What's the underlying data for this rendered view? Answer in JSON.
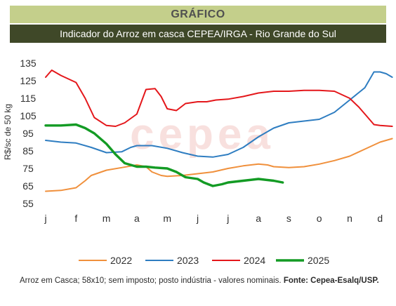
{
  "header": {
    "title": "GRÁFICO",
    "subtitle": "Indicador do Arroz em casca CEPEA/IRGA - Rio Grande do Sul"
  },
  "caption": {
    "text": "Arroz em Casca; 58x10; sem imposto; posto indústria - valores nominais.",
    "source": "Fonte: Cepea-Esalq/USP."
  },
  "watermark": "cepea",
  "chart_data": {
    "type": "line",
    "ylabel": "R$/sc de 50 kg",
    "xlabel": "",
    "ylim": [
      55,
      135
    ],
    "yticks": [
      55,
      65,
      75,
      85,
      95,
      105,
      115,
      125,
      135
    ],
    "xticks": [
      "j",
      "f",
      "m",
      "a",
      "m",
      "j",
      "j",
      "a",
      "s",
      "o",
      "n",
      "d"
    ],
    "legend_position": "bottom",
    "series": [
      {
        "name": "2022",
        "color": "#f0903c",
        "width": 2,
        "x": [
          0,
          0.5,
          1,
          1.3,
          1.5,
          2,
          2.5,
          3,
          3.3,
          3.5,
          3.8,
          4,
          4.5,
          5,
          5.5,
          6,
          6.5,
          7,
          7.3,
          7.5,
          8,
          8.5,
          9,
          9.5,
          10,
          10.5,
          11,
          11.4
        ],
        "values": [
          62,
          62.5,
          64,
          68,
          71,
          74,
          75.5,
          77,
          76,
          73,
          71,
          70.5,
          71,
          72,
          73,
          75,
          76.5,
          77.5,
          77,
          76,
          75.5,
          76,
          77.5,
          79.5,
          82,
          86,
          90,
          92
        ]
      },
      {
        "name": "2023",
        "color": "#2e7dc1",
        "width": 2,
        "x": [
          0,
          0.5,
          1,
          1.5,
          2,
          2.5,
          2.8,
          3,
          3.5,
          4,
          4.5,
          5,
          5.5,
          6,
          6.5,
          7,
          7.5,
          8,
          8.5,
          9,
          9.5,
          10,
          10.5,
          10.8,
          11,
          11.2,
          11.4
        ],
        "values": [
          91,
          90,
          89.5,
          87,
          84,
          84.5,
          87,
          88,
          88,
          86.5,
          84,
          82,
          81.5,
          83,
          87,
          93,
          98,
          101,
          102,
          103,
          107,
          114,
          121,
          130,
          130,
          129,
          127
        ]
      },
      {
        "name": "2024",
        "color": "#e4171b",
        "width": 2,
        "x": [
          0,
          0.2,
          0.5,
          1,
          1.3,
          1.6,
          2,
          2.3,
          2.6,
          3,
          3.3,
          3.6,
          3.8,
          4,
          4.3,
          4.6,
          5,
          5.3,
          5.6,
          6,
          6.5,
          7,
          7.5,
          8,
          8.5,
          9,
          9.5,
          10,
          10.3,
          10.6,
          10.8,
          11,
          11.4
        ],
        "values": [
          127,
          131,
          128,
          124,
          115,
          104,
          99.5,
          99,
          101,
          106,
          120,
          120.5,
          116,
          109,
          108,
          112,
          113,
          113,
          114,
          114.5,
          116,
          118,
          119,
          119,
          119.5,
          119.5,
          119,
          115,
          110,
          104,
          100,
          99.5,
          99
        ]
      },
      {
        "name": "2025",
        "color": "#139b24",
        "width": 3.4,
        "x": [
          0,
          0.5,
          1,
          1.3,
          1.6,
          2,
          2.3,
          2.6,
          3,
          3.3,
          3.6,
          4,
          4.3,
          4.6,
          5,
          5.2,
          5.5,
          5.8,
          6,
          6.5,
          7,
          7.5,
          7.8
        ],
        "values": [
          99.5,
          99.5,
          100,
          98,
          95,
          89,
          83,
          78,
          76,
          76,
          75.5,
          75,
          73,
          70,
          69,
          67,
          65,
          66,
          67,
          68,
          69,
          68,
          67
        ]
      }
    ]
  }
}
